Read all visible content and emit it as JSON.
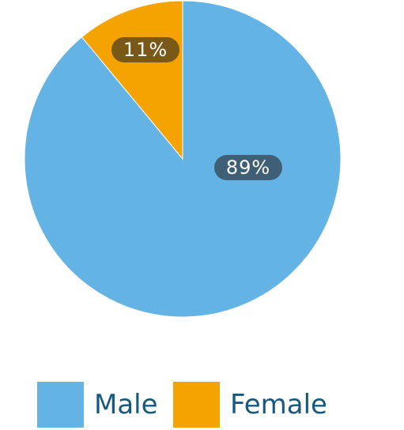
{
  "chart_data": {
    "type": "pie",
    "categories": [
      "Male",
      "Female"
    ],
    "values": [
      89,
      11
    ],
    "value_labels": [
      "89%",
      "11%"
    ],
    "colors": [
      "#63b3e5",
      "#f5a300"
    ],
    "legend": "bottom"
  }
}
